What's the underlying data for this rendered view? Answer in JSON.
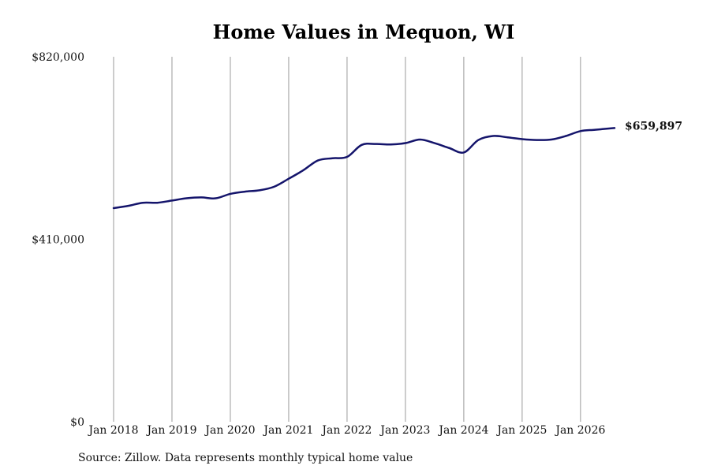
{
  "chart_data": {
    "type": "line",
    "title": "Home Values in Mequon, WI",
    "xlabel": "",
    "ylabel": "",
    "ylim": [
      0,
      820000
    ],
    "yticks": [
      {
        "value": 0,
        "label": "$0"
      },
      {
        "value": 410000,
        "label": "$410,000"
      },
      {
        "value": 820000,
        "label": "$820,000"
      }
    ],
    "xlim": [
      2018.0,
      2026.583
    ],
    "xticks": [
      {
        "value": 2018,
        "label": "Jan 2018"
      },
      {
        "value": 2019,
        "label": "Jan 2019"
      },
      {
        "value": 2020,
        "label": "Jan 2020"
      },
      {
        "value": 2021,
        "label": "Jan 2021"
      },
      {
        "value": 2022,
        "label": "Jan 2022"
      },
      {
        "value": 2023,
        "label": "Jan 2023"
      },
      {
        "value": 2024,
        "label": "Jan 2024"
      },
      {
        "value": 2025,
        "label": "Jan 2025"
      },
      {
        "value": 2026,
        "label": "Jan 2026"
      }
    ],
    "grid": "vertical lines at year ticks",
    "line_color": "#14146b",
    "end_label": "$659,897",
    "series": [
      {
        "points": [
          [
            2018.0,
            480000
          ],
          [
            2018.25,
            485000
          ],
          [
            2018.5,
            492000
          ],
          [
            2018.75,
            492000
          ],
          [
            2019.0,
            497000
          ],
          [
            2019.25,
            502000
          ],
          [
            2019.5,
            504000
          ],
          [
            2019.75,
            502000
          ],
          [
            2020.0,
            512000
          ],
          [
            2020.25,
            517000
          ],
          [
            2020.5,
            520000
          ],
          [
            2020.75,
            528000
          ],
          [
            2021.0,
            546000
          ],
          [
            2021.25,
            565000
          ],
          [
            2021.5,
            587000
          ],
          [
            2021.75,
            592000
          ],
          [
            2022.0,
            595000
          ],
          [
            2022.25,
            622000
          ],
          [
            2022.5,
            624000
          ],
          [
            2022.75,
            623000
          ],
          [
            2023.0,
            626000
          ],
          [
            2023.25,
            634000
          ],
          [
            2023.5,
            626000
          ],
          [
            2023.75,
            615000
          ],
          [
            2024.0,
            605000
          ],
          [
            2024.25,
            633000
          ],
          [
            2024.5,
            642000
          ],
          [
            2024.75,
            639000
          ],
          [
            2025.0,
            635000
          ],
          [
            2025.25,
            633000
          ],
          [
            2025.5,
            634000
          ],
          [
            2025.75,
            642000
          ],
          [
            2026.0,
            653000
          ],
          [
            2026.25,
            656000
          ],
          [
            2026.583,
            659897
          ]
        ]
      }
    ]
  },
  "footer": {
    "source": "Source: Zillow. Data represents monthly typical home value"
  }
}
